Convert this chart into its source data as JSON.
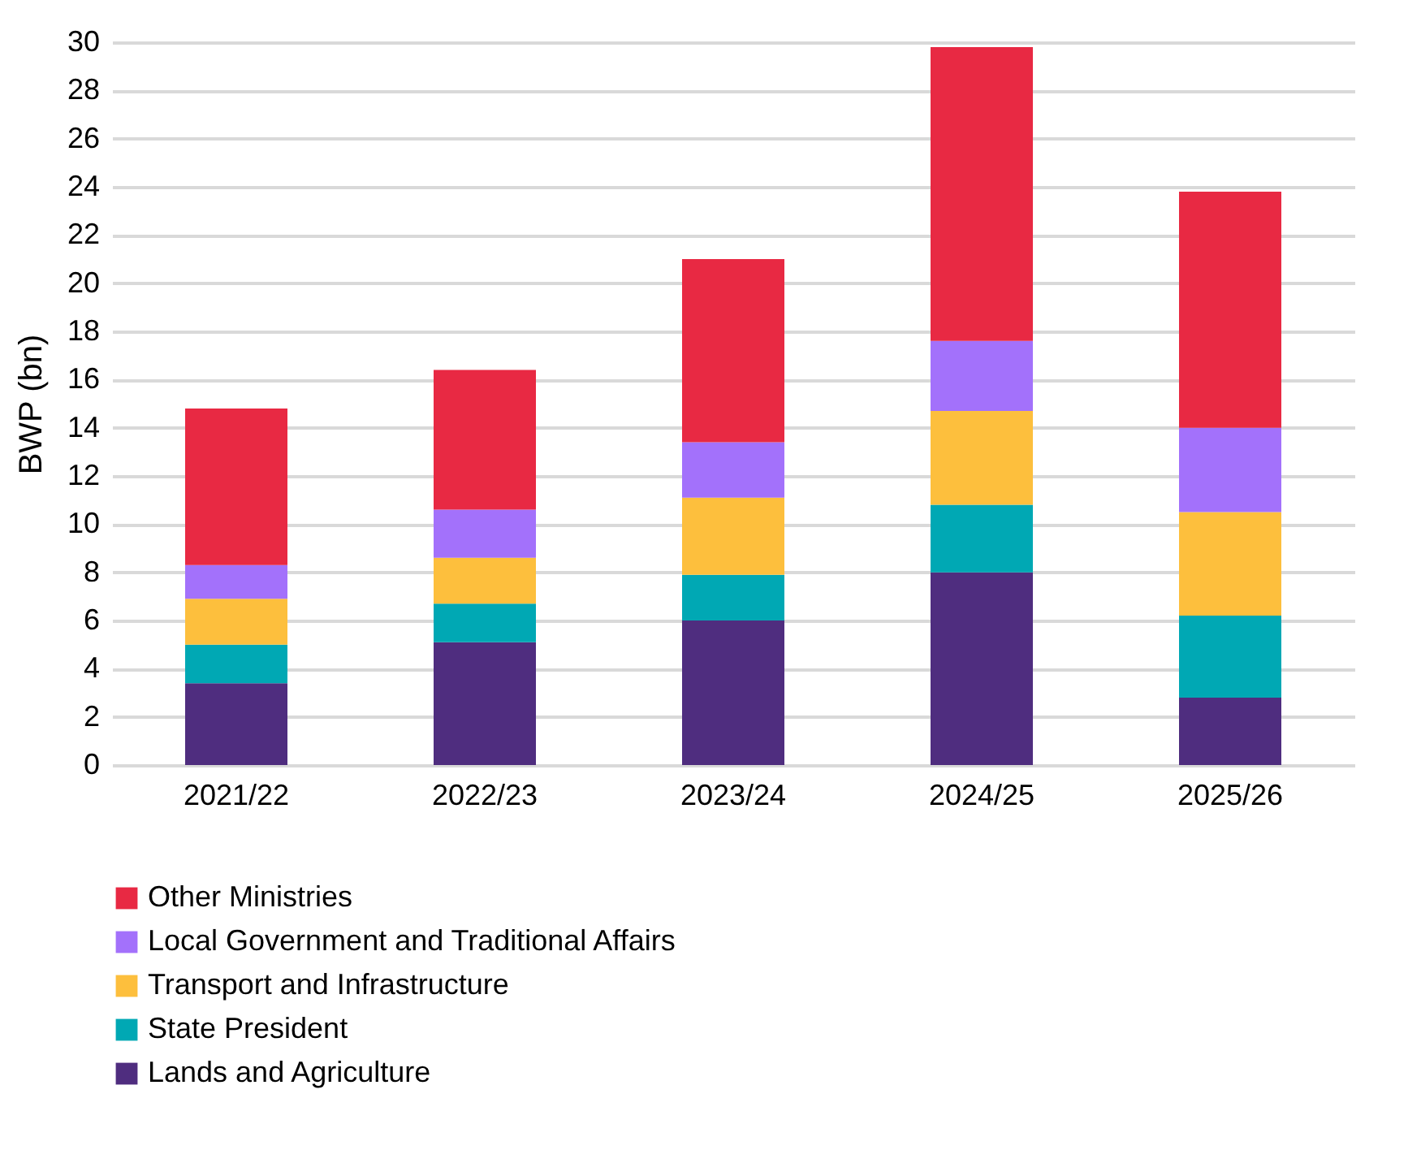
{
  "chart_data": {
    "type": "bar",
    "stacked": true,
    "ylabel": "BWP (bn)",
    "categories": [
      "2021/22",
      "2022/23",
      "2023/24",
      "2024/25",
      "2025/26"
    ],
    "series": [
      {
        "name": "Lands and Agriculture",
        "color": "#4f2d7f",
        "values": [
          3.4,
          5.1,
          6.0,
          8.0,
          2.8
        ]
      },
      {
        "name": "State President",
        "color": "#00a8b4",
        "values": [
          1.6,
          1.6,
          1.9,
          2.8,
          3.4
        ]
      },
      {
        "name": "Transport and Infrastructure",
        "color": "#fdbf3d",
        "values": [
          1.9,
          1.9,
          3.2,
          3.9,
          4.3
        ]
      },
      {
        "name": "Local Government and Traditional Affairs",
        "color": "#a371fb",
        "values": [
          1.4,
          2.0,
          2.3,
          2.9,
          3.5
        ]
      },
      {
        "name": "Other Ministries",
        "color": "#e82943",
        "values": [
          6.5,
          5.8,
          7.6,
          12.2,
          9.8
        ]
      }
    ],
    "ylim": [
      0,
      30
    ],
    "yticks": [
      0,
      2,
      4,
      6,
      8,
      10,
      12,
      14,
      16,
      18,
      20,
      22,
      24,
      26,
      28,
      30
    ],
    "grid": "y",
    "legend": "bottom"
  }
}
